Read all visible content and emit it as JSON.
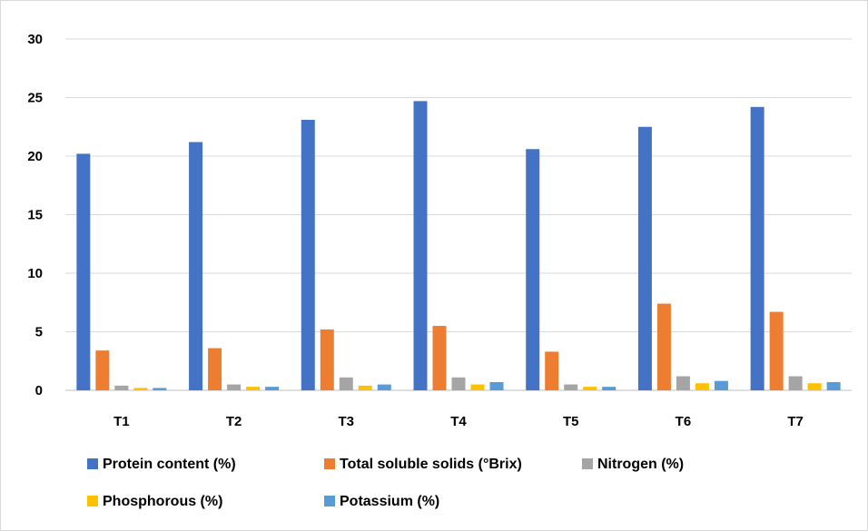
{
  "chart_data": {
    "type": "bar",
    "categories": [
      "T1",
      "T2",
      "T3",
      "T4",
      "T5",
      "T6",
      "T7"
    ],
    "series": [
      {
        "name": "Protein content (%)",
        "color": "#4472C4",
        "values": [
          20.2,
          21.2,
          23.1,
          24.7,
          20.6,
          22.5,
          24.2
        ]
      },
      {
        "name": "Total soluble solids (°Brix)",
        "color": "#ED7D31",
        "values": [
          3.4,
          3.6,
          5.2,
          5.5,
          3.3,
          7.4,
          6.7
        ]
      },
      {
        "name": "Nitrogen (%)",
        "color": "#A5A5A5",
        "values": [
          0.4,
          0.5,
          1.1,
          1.1,
          0.5,
          1.2,
          1.2
        ]
      },
      {
        "name": "Phosphorous (%)",
        "color": "#FFC000",
        "values": [
          0.2,
          0.3,
          0.4,
          0.5,
          0.3,
          0.6,
          0.6
        ]
      },
      {
        "name": "Potassium (%)",
        "color": "#5B9BD5",
        "values": [
          0.2,
          0.3,
          0.5,
          0.7,
          0.3,
          0.8,
          0.7
        ]
      }
    ],
    "y_ticks": [
      "0",
      "5",
      "10",
      "15",
      "20",
      "25",
      "30"
    ],
    "ylim": [
      0,
      30
    ],
    "grid": true,
    "legend_position": "bottom",
    "title": "",
    "xlabel": "",
    "ylabel": ""
  }
}
